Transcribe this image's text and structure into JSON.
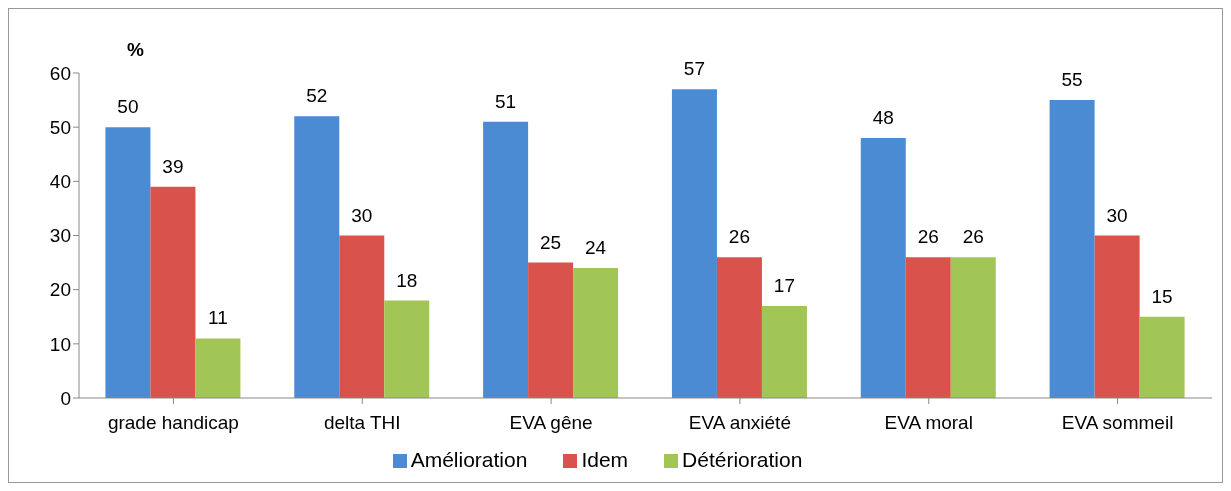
{
  "chart_data": {
    "type": "bar",
    "ylabel": "%",
    "categories": [
      "grade handicap",
      "delta THI",
      "EVA gêne",
      "EVA anxiété",
      "EVA moral",
      "EVA sommeil"
    ],
    "series": [
      {
        "name": "Amélioration",
        "color": "#4a8bd4",
        "values": [
          50,
          52,
          51,
          57,
          48,
          55
        ]
      },
      {
        "name": "Idem",
        "color": "#d9534c",
        "values": [
          39,
          30,
          25,
          26,
          26,
          30
        ]
      },
      {
        "name": "Détérioration",
        "color": "#a2c656",
        "values": [
          11,
          18,
          24,
          17,
          26,
          15
        ]
      }
    ],
    "ylim": [
      0,
      60
    ],
    "yticks": [
      0,
      10,
      20,
      30,
      40,
      50,
      60
    ],
    "grid": false,
    "legend": "bottom",
    "data_labels": true
  }
}
